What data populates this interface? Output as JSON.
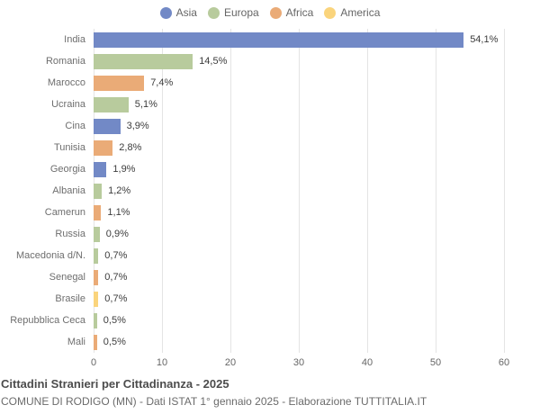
{
  "title": "Cittadini Stranieri per Cittadinanza - 2025",
  "subtitle": "COMUNE DI RODIGO (MN) - Dati ISTAT 1° gennaio 2025 - Elaborazione TUTTITALIA.IT",
  "legend": [
    {
      "label": "Asia",
      "color": "#7289c6"
    },
    {
      "label": "Europa",
      "color": "#b8cb9d"
    },
    {
      "label": "Africa",
      "color": "#eaab77"
    },
    {
      "label": "America",
      "color": "#fad47c"
    }
  ],
  "chart_data": {
    "type": "bar",
    "orientation": "horizontal",
    "title": "Cittadini Stranieri per Cittadinanza - 2025",
    "xlim": [
      0,
      60
    ],
    "xticks": [
      0,
      10,
      20,
      30,
      40,
      50,
      60
    ],
    "grid": true,
    "legend_position": "top",
    "points": [
      {
        "category": "India",
        "value": 54.1,
        "label": "54,1%",
        "group": "Asia"
      },
      {
        "category": "Romania",
        "value": 14.5,
        "label": "14,5%",
        "group": "Europa"
      },
      {
        "category": "Marocco",
        "value": 7.4,
        "label": "7,4%",
        "group": "Africa"
      },
      {
        "category": "Ucraina",
        "value": 5.1,
        "label": "5,1%",
        "group": "Europa"
      },
      {
        "category": "Cina",
        "value": 3.9,
        "label": "3,9%",
        "group": "Asia"
      },
      {
        "category": "Tunisia",
        "value": 2.8,
        "label": "2,8%",
        "group": "Africa"
      },
      {
        "category": "Georgia",
        "value": 1.9,
        "label": "1,9%",
        "group": "Asia"
      },
      {
        "category": "Albania",
        "value": 1.2,
        "label": "1,2%",
        "group": "Europa"
      },
      {
        "category": "Camerun",
        "value": 1.1,
        "label": "1,1%",
        "group": "Africa"
      },
      {
        "category": "Russia",
        "value": 0.9,
        "label": "0,9%",
        "group": "Europa"
      },
      {
        "category": "Macedonia d/N.",
        "value": 0.7,
        "label": "0,7%",
        "group": "Europa"
      },
      {
        "category": "Senegal",
        "value": 0.7,
        "label": "0,7%",
        "group": "Africa"
      },
      {
        "category": "Brasile",
        "value": 0.7,
        "label": "0,7%",
        "group": "America"
      },
      {
        "category": "Repubblica Ceca",
        "value": 0.5,
        "label": "0,5%",
        "group": "Europa"
      },
      {
        "category": "Mali",
        "value": 0.5,
        "label": "0,5%",
        "group": "Africa"
      }
    ]
  }
}
